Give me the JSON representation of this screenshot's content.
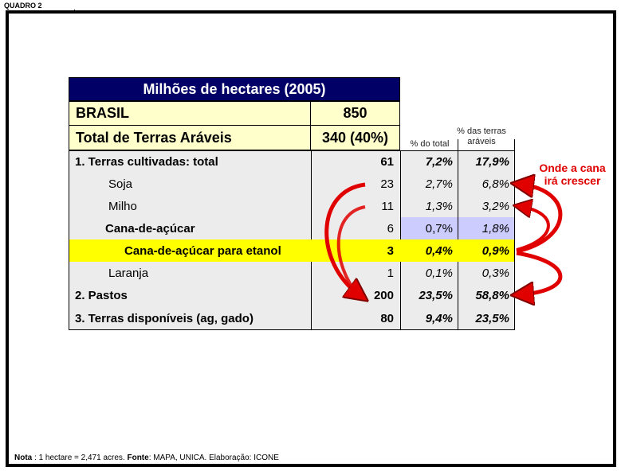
{
  "quadro_label": "QUADRO 2",
  "table": {
    "title": "Milhões de hectares (2005)",
    "brasil_label": "BRASIL",
    "brasil_value": "850",
    "total_label": "Total de Terras Aráveis",
    "total_value": "340 (40%)",
    "col_pct_total": "% do total",
    "col_pct_araveis_line1": "% das terras",
    "col_pct_araveis_line2": "aráveis",
    "rows": [
      {
        "label": "1. Terras cultivadas: total",
        "value": "61",
        "pct_total": "7,2%",
        "pct_araveis": "17,9%"
      },
      {
        "label": "Soja",
        "value": "23",
        "pct_total": "2,7%",
        "pct_araveis": "6,8%"
      },
      {
        "label": "Milho",
        "value": "11",
        "pct_total": "1,3%",
        "pct_araveis": "3,2%"
      },
      {
        "label": "Cana-de-açúcar",
        "value": "6",
        "pct_total": "0,7%",
        "pct_araveis": "1,8%"
      },
      {
        "label": "Cana-de-açúcar para etanol",
        "value": "3",
        "pct_total": "0,4%",
        "pct_araveis": "0,9%"
      },
      {
        "label": "Laranja",
        "value": "1",
        "pct_total": "0,1%",
        "pct_araveis": "0,3%"
      },
      {
        "label": "2. Pastos",
        "value": "200",
        "pct_total": "23,5%",
        "pct_araveis": "58,8%"
      },
      {
        "label": "3. Terras disponíveis (ag, gado)",
        "value": "80",
        "pct_total": "9,4%",
        "pct_araveis": "23,5%"
      }
    ]
  },
  "callout_line1": "Onde a cana",
  "callout_line2": "irá crescer",
  "note": {
    "nota_label": "Nota",
    "nota_text": " : 1 hectare = 2,471 acres. ",
    "fonte_label": "Fonte",
    "fonte_text": ": MAPA, UNICA. Elaboração: ICONE"
  },
  "colors": {
    "header_bg": "#000066",
    "cream": "#ffffcc",
    "grey": "#ececec",
    "highlight_yellow": "#ffff00",
    "lavender": "#ccccff",
    "arrow_red": "#e00000"
  }
}
